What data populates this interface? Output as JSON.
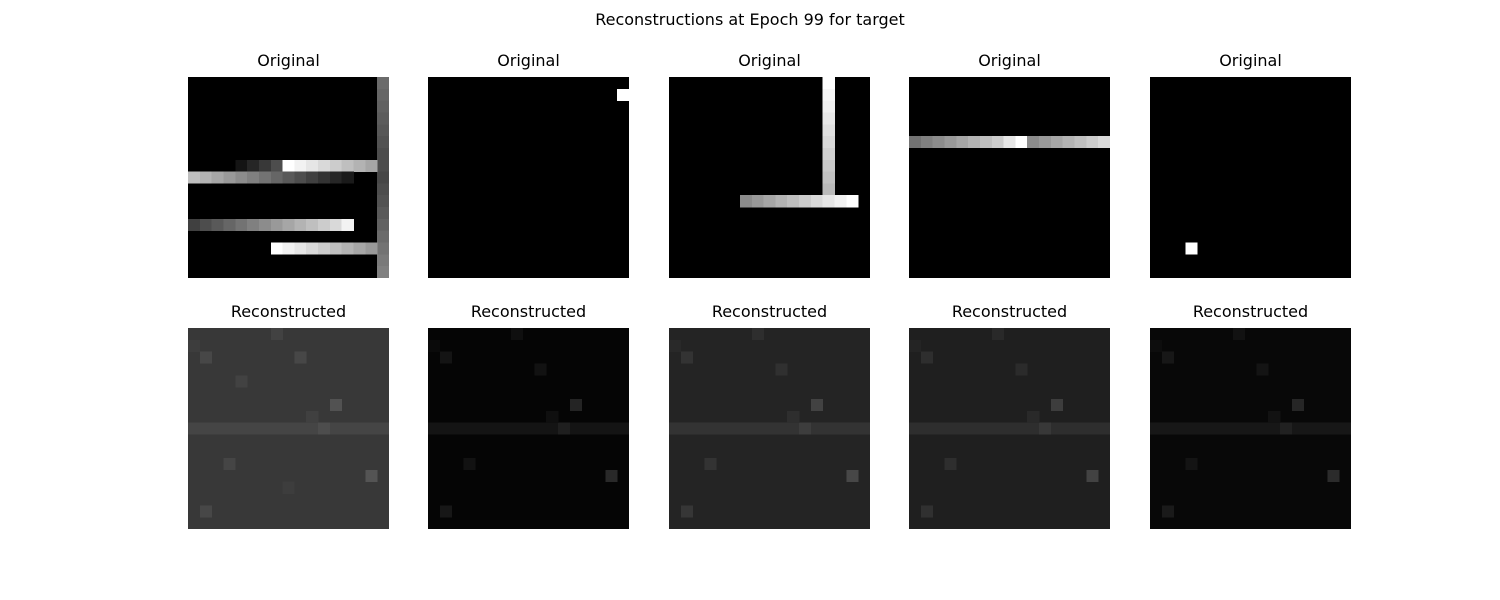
{
  "figure": {
    "suptitle": "Reconstructions at Epoch 99 for target",
    "row_titles": [
      "Original",
      "Reconstructed"
    ]
  },
  "chart_data": {
    "type": "heatmap",
    "title": "Reconstructions at Epoch 99 for target",
    "colormap": "gray",
    "grid_size": 17,
    "panels": [
      {
        "name": "Original",
        "row": 0,
        "col": 0,
        "cells": [
          {
            "r": 0,
            "c": 16,
            "v": 0.42
          },
          {
            "r": 1,
            "c": 16,
            "v": 0.4
          },
          {
            "r": 2,
            "c": 16,
            "v": 0.38
          },
          {
            "r": 3,
            "c": 16,
            "v": 0.36
          },
          {
            "r": 4,
            "c": 16,
            "v": 0.34
          },
          {
            "r": 5,
            "c": 16,
            "v": 0.32
          },
          {
            "r": 6,
            "c": 16,
            "v": 0.3
          },
          {
            "r": 7,
            "c": 16,
            "v": 0.3
          },
          {
            "r": 8,
            "c": 16,
            "v": 0.28
          },
          {
            "r": 9,
            "c": 16,
            "v": 0.3
          },
          {
            "r": 10,
            "c": 16,
            "v": 0.32
          },
          {
            "r": 11,
            "c": 16,
            "v": 0.35
          },
          {
            "r": 12,
            "c": 16,
            "v": 0.38
          },
          {
            "r": 13,
            "c": 16,
            "v": 0.42
          },
          {
            "r": 14,
            "c": 16,
            "v": 0.45
          },
          {
            "r": 15,
            "c": 16,
            "v": 0.48
          },
          {
            "r": 16,
            "c": 16,
            "v": 0.5
          },
          {
            "r": 7,
            "c": 4,
            "v": 0.08
          },
          {
            "r": 7,
            "c": 5,
            "v": 0.15
          },
          {
            "r": 7,
            "c": 6,
            "v": 0.22
          },
          {
            "r": 7,
            "c": 7,
            "v": 0.3
          },
          {
            "r": 7,
            "c": 8,
            "v": 1.0
          },
          {
            "r": 7,
            "c": 9,
            "v": 0.95
          },
          {
            "r": 7,
            "c": 10,
            "v": 0.9
          },
          {
            "r": 7,
            "c": 11,
            "v": 0.85
          },
          {
            "r": 7,
            "c": 12,
            "v": 0.8
          },
          {
            "r": 7,
            "c": 13,
            "v": 0.75
          },
          {
            "r": 7,
            "c": 14,
            "v": 0.7
          },
          {
            "r": 7,
            "c": 15,
            "v": 0.65
          },
          {
            "r": 8,
            "c": 0,
            "v": 0.75
          },
          {
            "r": 8,
            "c": 1,
            "v": 0.7
          },
          {
            "r": 8,
            "c": 2,
            "v": 0.65
          },
          {
            "r": 8,
            "c": 3,
            "v": 0.6
          },
          {
            "r": 8,
            "c": 4,
            "v": 0.55
          },
          {
            "r": 8,
            "c": 5,
            "v": 0.5
          },
          {
            "r": 8,
            "c": 6,
            "v": 0.45
          },
          {
            "r": 8,
            "c": 7,
            "v": 0.4
          },
          {
            "r": 8,
            "c": 8,
            "v": 0.35
          },
          {
            "r": 8,
            "c": 9,
            "v": 0.3
          },
          {
            "r": 8,
            "c": 10,
            "v": 0.25
          },
          {
            "r": 8,
            "c": 11,
            "v": 0.2
          },
          {
            "r": 8,
            "c": 12,
            "v": 0.15
          },
          {
            "r": 8,
            "c": 13,
            "v": 0.1
          },
          {
            "r": 12,
            "c": 0,
            "v": 0.25
          },
          {
            "r": 12,
            "c": 1,
            "v": 0.3
          },
          {
            "r": 12,
            "c": 2,
            "v": 0.35
          },
          {
            "r": 12,
            "c": 3,
            "v": 0.4
          },
          {
            "r": 12,
            "c": 4,
            "v": 0.45
          },
          {
            "r": 12,
            "c": 5,
            "v": 0.5
          },
          {
            "r": 12,
            "c": 6,
            "v": 0.55
          },
          {
            "r": 12,
            "c": 7,
            "v": 0.6
          },
          {
            "r": 12,
            "c": 8,
            "v": 0.65
          },
          {
            "r": 12,
            "c": 9,
            "v": 0.7
          },
          {
            "r": 12,
            "c": 10,
            "v": 0.75
          },
          {
            "r": 12,
            "c": 11,
            "v": 0.8
          },
          {
            "r": 12,
            "c": 12,
            "v": 0.85
          },
          {
            "r": 12,
            "c": 13,
            "v": 0.95
          },
          {
            "r": 14,
            "c": 7,
            "v": 1.0
          },
          {
            "r": 14,
            "c": 8,
            "v": 0.95
          },
          {
            "r": 14,
            "c": 9,
            "v": 0.9
          },
          {
            "r": 14,
            "c": 10,
            "v": 0.85
          },
          {
            "r": 14,
            "c": 11,
            "v": 0.8
          },
          {
            "r": 14,
            "c": 12,
            "v": 0.75
          },
          {
            "r": 14,
            "c": 13,
            "v": 0.7
          },
          {
            "r": 14,
            "c": 14,
            "v": 0.65
          },
          {
            "r": 14,
            "c": 15,
            "v": 0.6
          }
        ]
      },
      {
        "name": "Original",
        "row": 0,
        "col": 1,
        "cells": [
          {
            "r": 1,
            "c": 16,
            "v": 1.0
          }
        ]
      },
      {
        "name": "Original",
        "row": 0,
        "col": 2,
        "cells": [
          {
            "r": 0,
            "c": 13,
            "v": 1.0
          },
          {
            "r": 1,
            "c": 13,
            "v": 0.97
          },
          {
            "r": 2,
            "c": 13,
            "v": 0.94
          },
          {
            "r": 3,
            "c": 13,
            "v": 0.91
          },
          {
            "r": 4,
            "c": 13,
            "v": 0.88
          },
          {
            "r": 5,
            "c": 13,
            "v": 0.85
          },
          {
            "r": 6,
            "c": 13,
            "v": 0.82
          },
          {
            "r": 7,
            "c": 13,
            "v": 0.79
          },
          {
            "r": 8,
            "c": 13,
            "v": 0.76
          },
          {
            "r": 9,
            "c": 13,
            "v": 0.73
          },
          {
            "r": 10,
            "c": 6,
            "v": 0.55
          },
          {
            "r": 10,
            "c": 7,
            "v": 0.6
          },
          {
            "r": 10,
            "c": 8,
            "v": 0.65
          },
          {
            "r": 10,
            "c": 9,
            "v": 0.7
          },
          {
            "r": 10,
            "c": 10,
            "v": 0.75
          },
          {
            "r": 10,
            "c": 11,
            "v": 0.8
          },
          {
            "r": 10,
            "c": 12,
            "v": 0.85
          },
          {
            "r": 10,
            "c": 13,
            "v": 0.9
          },
          {
            "r": 10,
            "c": 14,
            "v": 0.95
          },
          {
            "r": 10,
            "c": 15,
            "v": 1.0
          }
        ]
      },
      {
        "name": "Original",
        "row": 0,
        "col": 3,
        "cells": [
          {
            "r": 5,
            "c": 0,
            "v": 0.45
          },
          {
            "r": 5,
            "c": 1,
            "v": 0.5
          },
          {
            "r": 5,
            "c": 2,
            "v": 0.55
          },
          {
            "r": 5,
            "c": 3,
            "v": 0.6
          },
          {
            "r": 5,
            "c": 4,
            "v": 0.65
          },
          {
            "r": 5,
            "c": 5,
            "v": 0.7
          },
          {
            "r": 5,
            "c": 6,
            "v": 0.75
          },
          {
            "r": 5,
            "c": 7,
            "v": 0.8
          },
          {
            "r": 5,
            "c": 8,
            "v": 0.9
          },
          {
            "r": 5,
            "c": 9,
            "v": 1.0
          },
          {
            "r": 5,
            "c": 10,
            "v": 0.55
          },
          {
            "r": 5,
            "c": 11,
            "v": 0.6
          },
          {
            "r": 5,
            "c": 12,
            "v": 0.65
          },
          {
            "r": 5,
            "c": 13,
            "v": 0.7
          },
          {
            "r": 5,
            "c": 14,
            "v": 0.75
          },
          {
            "r": 5,
            "c": 15,
            "v": 0.8
          },
          {
            "r": 5,
            "c": 16,
            "v": 0.85
          }
        ]
      },
      {
        "name": "Original",
        "row": 0,
        "col": 4,
        "cells": [
          {
            "r": 14,
            "c": 3,
            "v": 1.0
          }
        ]
      },
      {
        "name": "Reconstructed",
        "row": 1,
        "col": 0,
        "base": 0.22,
        "row_band": {
          "r": 8,
          "v": 0.27
        },
        "cells": [
          {
            "r": 0,
            "c": 7,
            "v": 0.26
          },
          {
            "r": 1,
            "c": 0,
            "v": 0.24
          },
          {
            "r": 2,
            "c": 1,
            "v": 0.28
          },
          {
            "r": 2,
            "c": 9,
            "v": 0.28
          },
          {
            "r": 4,
            "c": 4,
            "v": 0.26
          },
          {
            "r": 6,
            "c": 12,
            "v": 0.32
          },
          {
            "r": 7,
            "c": 10,
            "v": 0.25
          },
          {
            "r": 8,
            "c": 11,
            "v": 0.3
          },
          {
            "r": 11,
            "c": 3,
            "v": 0.27
          },
          {
            "r": 12,
            "c": 15,
            "v": 0.33
          },
          {
            "r": 15,
            "c": 1,
            "v": 0.28
          },
          {
            "r": 13,
            "c": 8,
            "v": 0.24
          }
        ]
      },
      {
        "name": "Reconstructed",
        "row": 1,
        "col": 1,
        "base": 0.02,
        "row_band": {
          "r": 8,
          "v": 0.08
        },
        "cells": [
          {
            "r": 0,
            "c": 7,
            "v": 0.06
          },
          {
            "r": 1,
            "c": 0,
            "v": 0.04
          },
          {
            "r": 2,
            "c": 1,
            "v": 0.08
          },
          {
            "r": 3,
            "c": 9,
            "v": 0.07
          },
          {
            "r": 6,
            "c": 12,
            "v": 0.14
          },
          {
            "r": 8,
            "c": 11,
            "v": 0.12
          },
          {
            "r": 7,
            "c": 10,
            "v": 0.06
          },
          {
            "r": 11,
            "c": 3,
            "v": 0.07
          },
          {
            "r": 12,
            "c": 15,
            "v": 0.16
          },
          {
            "r": 15,
            "c": 1,
            "v": 0.09
          }
        ]
      },
      {
        "name": "Reconstructed",
        "row": 1,
        "col": 2,
        "base": 0.14,
        "row_band": {
          "r": 8,
          "v": 0.2
        },
        "cells": [
          {
            "r": 0,
            "c": 7,
            "v": 0.18
          },
          {
            "r": 1,
            "c": 0,
            "v": 0.16
          },
          {
            "r": 2,
            "c": 1,
            "v": 0.2
          },
          {
            "r": 3,
            "c": 9,
            "v": 0.19
          },
          {
            "r": 6,
            "c": 12,
            "v": 0.26
          },
          {
            "r": 8,
            "c": 11,
            "v": 0.24
          },
          {
            "r": 7,
            "c": 10,
            "v": 0.18
          },
          {
            "r": 11,
            "c": 3,
            "v": 0.2
          },
          {
            "r": 12,
            "c": 15,
            "v": 0.28
          },
          {
            "r": 15,
            "c": 1,
            "v": 0.21
          }
        ]
      },
      {
        "name": "Reconstructed",
        "row": 1,
        "col": 3,
        "base": 0.12,
        "row_band": {
          "r": 8,
          "v": 0.18
        },
        "cells": [
          {
            "r": 0,
            "c": 7,
            "v": 0.16
          },
          {
            "r": 1,
            "c": 0,
            "v": 0.14
          },
          {
            "r": 2,
            "c": 1,
            "v": 0.18
          },
          {
            "r": 3,
            "c": 9,
            "v": 0.17
          },
          {
            "r": 6,
            "c": 12,
            "v": 0.24
          },
          {
            "r": 8,
            "c": 11,
            "v": 0.22
          },
          {
            "r": 7,
            "c": 10,
            "v": 0.16
          },
          {
            "r": 11,
            "c": 3,
            "v": 0.18
          },
          {
            "r": 12,
            "c": 15,
            "v": 0.26
          },
          {
            "r": 15,
            "c": 1,
            "v": 0.19
          }
        ]
      },
      {
        "name": "Reconstructed",
        "row": 1,
        "col": 4,
        "base": 0.03,
        "row_band": {
          "r": 8,
          "v": 0.09
        },
        "cells": [
          {
            "r": 0,
            "c": 7,
            "v": 0.07
          },
          {
            "r": 1,
            "c": 0,
            "v": 0.05
          },
          {
            "r": 2,
            "c": 1,
            "v": 0.09
          },
          {
            "r": 3,
            "c": 9,
            "v": 0.08
          },
          {
            "r": 6,
            "c": 12,
            "v": 0.15
          },
          {
            "r": 8,
            "c": 11,
            "v": 0.13
          },
          {
            "r": 7,
            "c": 10,
            "v": 0.07
          },
          {
            "r": 11,
            "c": 3,
            "v": 0.08
          },
          {
            "r": 12,
            "c": 15,
            "v": 0.17
          },
          {
            "r": 15,
            "c": 1,
            "v": 0.1
          }
        ]
      }
    ]
  }
}
